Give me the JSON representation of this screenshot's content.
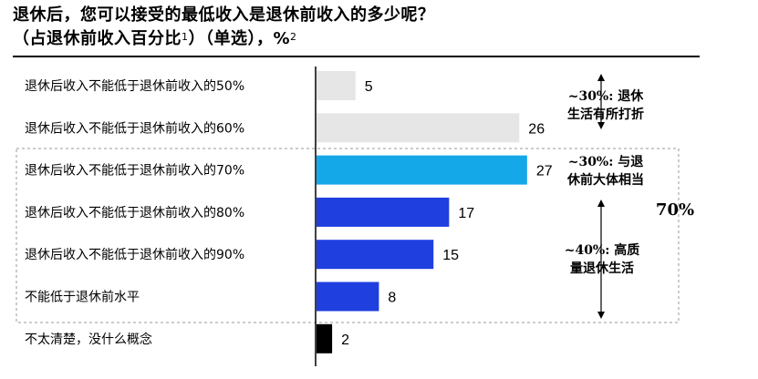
{
  "title": {
    "line1": "退休后，您可以接受的最低收入是退休前收入的多少呢？",
    "line2_main": "（占退休前收入百分比",
    "line2_sup": "1",
    "line2_mid": "）（单选），%",
    "line2_sup2": "2"
  },
  "chart_data": {
    "type": "bar",
    "orientation": "horizontal",
    "categories": [
      "退休后收入不能低于退休前收入的50%",
      "退休后收入不能低于退休前收入的60%",
      "退休后收入不能低于退休前收入的70%",
      "退休后收入不能低于退休前收入的80%",
      "退休后收入不能低于退休前收入的90%",
      "不能低于退休前水平",
      "不太清楚，没什么概念"
    ],
    "values": [
      5,
      26,
      27,
      17,
      15,
      8,
      2
    ],
    "colors": [
      "#e6e6e6",
      "#e6e6e6",
      "#15a8e8",
      "#1f3fdf",
      "#1f3fdf",
      "#1f3fdf",
      "#000000"
    ],
    "xlim": [
      0,
      30
    ],
    "grid": false,
    "legend": "none"
  },
  "annotations": {
    "group1": {
      "pct": "~30%:",
      "line1_rest": "退休",
      "line2": "生活有所打折"
    },
    "group2": {
      "pct": "~30%:",
      "line1_rest": "与退",
      "line2": "休前大体相当"
    },
    "group3": {
      "pct": "~40%:",
      "line1_rest": "高质",
      "line2": "量退休生活"
    },
    "bracket_total": "70%"
  }
}
